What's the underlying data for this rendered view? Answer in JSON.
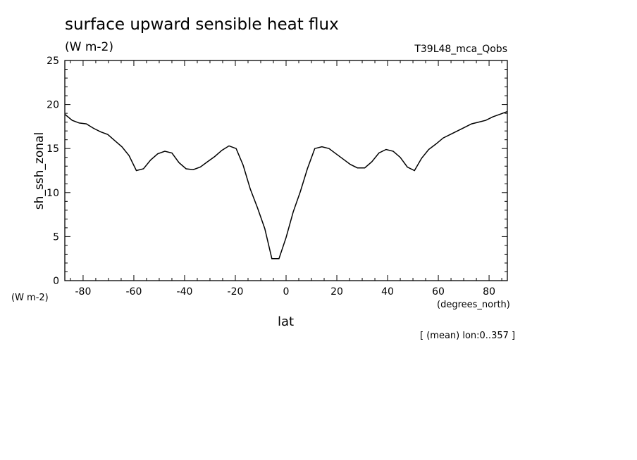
{
  "chart_data": {
    "type": "line",
    "title": "surface upward sensible heat flux",
    "units": "(W m-2)",
    "run_label": "T39L48_mca_Qobs",
    "ylabel": "sh_ssh_zonal",
    "yunits": "(W m-2)",
    "xlabel": "lat",
    "xunits": "(degrees_north)",
    "note": "[ (mean) lon:0..357 ]",
    "xlim": [
      -87.2,
      87.2
    ],
    "ylim": [
      0,
      25
    ],
    "xticks": [
      -80,
      -60,
      -40,
      -20,
      0,
      20,
      40,
      60,
      80
    ],
    "xtick_labels": [
      "-80",
      "-60",
      "-40",
      "-20",
      "0",
      "20",
      "40",
      "60",
      "80"
    ],
    "yticks": [
      0,
      5,
      10,
      15,
      20,
      25
    ],
    "ytick_labels": [
      "0",
      "5",
      "10",
      "15",
      "20",
      "25"
    ],
    "x": [
      -87.2,
      -84.3,
      -81.5,
      -78.7,
      -75.9,
      -73.1,
      -70.3,
      -67.5,
      -64.7,
      -61.9,
      -59.0,
      -56.2,
      -53.4,
      -50.6,
      -47.8,
      -45.0,
      -42.2,
      -39.4,
      -36.6,
      -33.8,
      -31.0,
      -28.1,
      -25.3,
      -22.5,
      -19.7,
      -16.9,
      -14.1,
      -11.3,
      -8.4,
      -5.6,
      -2.8,
      0.0,
      2.8,
      5.6,
      8.4,
      11.3,
      14.1,
      16.9,
      19.7,
      22.5,
      25.3,
      28.1,
      31.0,
      33.8,
      36.6,
      39.4,
      42.2,
      45.0,
      47.8,
      50.6,
      53.4,
      56.2,
      59.0,
      61.9,
      64.7,
      67.5,
      70.3,
      73.1,
      75.9,
      78.7,
      81.5,
      84.3,
      87.2
    ],
    "series": [
      {
        "values": [
          18.9,
          18.2,
          17.9,
          17.8,
          17.3,
          16.9,
          16.6,
          15.9,
          15.2,
          14.2,
          12.5,
          12.7,
          13.7,
          14.4,
          14.7,
          14.5,
          13.4,
          12.7,
          12.6,
          12.9,
          13.5,
          14.1,
          14.8,
          15.3,
          15.0,
          13.1,
          10.4,
          8.3,
          5.9,
          2.5,
          2.5,
          4.9,
          7.8,
          10.1,
          12.7,
          15.0,
          15.2,
          15.0,
          14.4,
          13.8,
          13.2,
          12.8,
          12.8,
          13.5,
          14.5,
          14.9,
          14.7,
          14.0,
          12.9,
          12.5,
          13.9,
          14.9,
          15.5,
          16.2,
          16.6,
          17.0,
          17.4,
          17.8,
          18.0,
          18.2,
          18.6,
          18.9,
          19.2
        ]
      }
    ]
  }
}
